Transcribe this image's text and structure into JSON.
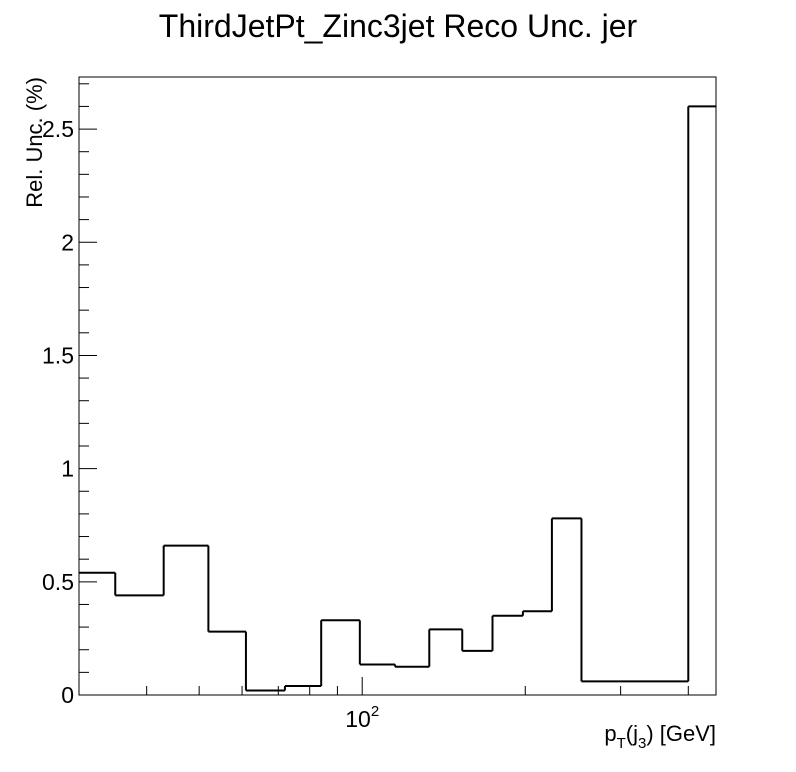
{
  "chart_data": {
    "type": "step",
    "title": "ThirdJetPt_Zinc3jet Reco Unc. jer",
    "xlabel": "p_T(j_3) [GeV]",
    "xlabel_parts": {
      "p": "p",
      "sub_T": "T",
      "open": "(j",
      "sub_3": "3",
      "close": ") [GeV]"
    },
    "ylabel": "Rel. Unc. (%)",
    "x_scale": "log",
    "xlim": [
      30,
      450
    ],
    "ylim": [
      0,
      2.73
    ],
    "y_ticks": [
      {
        "value": 0,
        "label": "0"
      },
      {
        "value": 0.5,
        "label": "0.5"
      },
      {
        "value": 1,
        "label": "1"
      },
      {
        "value": 1.5,
        "label": "1.5"
      },
      {
        "value": 2,
        "label": "2"
      },
      {
        "value": 2.5,
        "label": "2.5"
      }
    ],
    "x_tick_labels": [
      {
        "value": 100,
        "base": "10",
        "exponent": "2"
      }
    ],
    "bin_edges": [
      30,
      35,
      43,
      52,
      61,
      72,
      84,
      99,
      115,
      133,
      153,
      174,
      198,
      224,
      254,
      400,
      450
    ],
    "values": [
      0.54,
      0.44,
      0.66,
      0.28,
      0.02,
      0.04,
      0.33,
      0.135,
      0.125,
      0.29,
      0.195,
      0.35,
      0.37,
      0.78,
      0.06,
      2.6
    ],
    "line_color": "#000000",
    "grid": false,
    "legend": "none"
  }
}
